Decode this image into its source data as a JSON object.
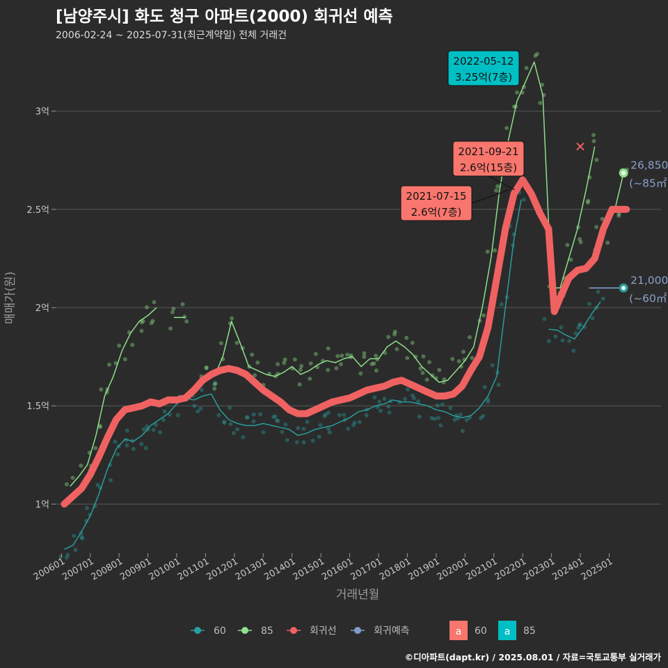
{
  "header": {
    "title": "[남양주시] 화도 청구 아파트(2000) 회귀선 예측",
    "subtitle": "2006-02-24 ~ 2025-07-31(최근계약일) 전체 거래건",
    "caption": "©디아파트(dapt.kr) / 2025.08.01 / 자료=국토교통부 실거래가"
  },
  "colors": {
    "background": "#2b2b2b",
    "grid": "#5a5a5a",
    "size60": "#2a9d9d",
    "size85": "#8ee08a",
    "regression": "#f06262",
    "forecast": "#7f9cc9",
    "label60": "#f8766d",
    "label85": "#00bfc4"
  },
  "chart_data": {
    "type": "line",
    "title": "[남양주시] 화도 청구 아파트(2000) 회귀선 예측",
    "xlabel": "거래년월",
    "ylabel": "매매가(원)",
    "x_ticks": [
      "200601",
      "200701",
      "200801",
      "200901",
      "201001",
      "201101",
      "201201",
      "201301",
      "201401",
      "201501",
      "201601",
      "201701",
      "201801",
      "201901",
      "202001",
      "202101",
      "202201",
      "202301",
      "202401",
      "202501"
    ],
    "y_ticks": [
      {
        "value": 10000,
        "label": "1억"
      },
      {
        "value": 15000,
        "label": "1.5억"
      },
      {
        "value": 20000,
        "label": "2억"
      },
      {
        "value": 25000,
        "label": "2.5억"
      },
      {
        "value": 30000,
        "label": "3억"
      }
    ],
    "ylim": [
      7500,
      33000
    ],
    "xlim": [
      2005.8,
      2026.8
    ],
    "grid": true,
    "series": [
      {
        "name": "60",
        "kind": "line",
        "color": "#2a9d9d",
        "x": [
          2006.1,
          2006.4,
          2006.7,
          2007.0,
          2007.3,
          2007.6,
          2007.9,
          2008.2,
          2008.5,
          2008.8,
          2009.1,
          2009.4,
          2009.7,
          2010.0,
          2010.3,
          2010.6,
          2010.9,
          2011.2,
          2011.5,
          2011.8,
          2012.1,
          2012.4,
          2012.7,
          2013.0,
          2013.3,
          2013.6,
          2013.9,
          2014.2,
          2014.5,
          2014.8,
          2015.1,
          2015.4,
          2015.7,
          2016.0,
          2016.3,
          2016.6,
          2016.9,
          2017.2,
          2017.5,
          2017.8,
          2018.1,
          2018.4,
          2018.7,
          2019.0,
          2019.3,
          2019.6,
          2019.9,
          2020.2,
          2020.5,
          2020.8,
          2021.1,
          2021.4,
          2021.7,
          2021.95
        ],
        "y": [
          7700,
          7900,
          8600,
          9400,
          10500,
          11800,
          12800,
          13300,
          13200,
          13500,
          14000,
          14300,
          14600,
          15100,
          15400,
          15300,
          15500,
          15600,
          14800,
          14300,
          14100,
          14000,
          14000,
          14100,
          14000,
          13900,
          13800,
          13500,
          13600,
          13800,
          13900,
          14000,
          14200,
          14400,
          14700,
          14800,
          15000,
          15100,
          15300,
          15200,
          15200,
          15100,
          15000,
          14800,
          14700,
          14500,
          14400,
          14500,
          14900,
          15500,
          16500,
          20000,
          23500,
          25500
        ]
      },
      {
        "name": "60",
        "kind": "line",
        "color": "#2a9d9d",
        "x": [
          2022.9,
          2023.2,
          2023.5,
          2023.8,
          2024.1,
          2024.4,
          2024.7
        ],
        "y": [
          18900,
          18850,
          18600,
          18400,
          19000,
          19700,
          20300
        ]
      },
      {
        "name": "85",
        "kind": "line",
        "color": "#8ee08a",
        "x": [
          2006.3,
          2006.6,
          2006.9,
          2007.2,
          2007.5,
          2007.8,
          2008.1,
          2008.4,
          2008.7,
          2009.0,
          2009.3
        ],
        "y": [
          10900,
          11400,
          12000,
          13500,
          15500,
          16500,
          17800,
          18700,
          19300,
          19600,
          20000
        ]
      },
      {
        "name": "85",
        "kind": "line",
        "color": "#8ee08a",
        "x": [
          2009.9,
          2010.3
        ],
        "y": [
          19500,
          19500
        ]
      },
      {
        "name": "85",
        "kind": "line",
        "color": "#8ee08a",
        "x": [
          2011.0,
          2011.3,
          2011.6,
          2011.9,
          2012.2,
          2012.5,
          2012.8,
          2013.1,
          2013.4,
          2013.7,
          2014.0,
          2014.3,
          2014.6,
          2014.9,
          2015.2,
          2015.5,
          2015.8,
          2016.1,
          2016.4,
          2016.7,
          2017.0,
          2017.3,
          2017.6,
          2017.9,
          2018.2,
          2018.5,
          2018.8,
          2019.1,
          2019.4,
          2019.7,
          2020.0,
          2020.3,
          2020.6,
          2020.9,
          2021.2,
          2021.5,
          2021.8,
          2022.1,
          2022.4,
          2022.7,
          2023.0,
          2023.3,
          2023.6,
          2023.9,
          2024.2,
          2024.5
        ],
        "y": [
          16500,
          16500,
          17500,
          19300,
          18200,
          17000,
          16800,
          16600,
          16500,
          16700,
          17000,
          16600,
          16800,
          17100,
          17300,
          17200,
          17400,
          17500,
          17000,
          17400,
          17400,
          18000,
          18300,
          18000,
          17600,
          17000,
          16600,
          16200,
          16300,
          16800,
          17300,
          18000,
          20000,
          22500,
          26000,
          28500,
          30500,
          31500,
          32500,
          30800,
          21000,
          21000,
          22500,
          24000,
          26000,
          28200
        ]
      },
      {
        "name": "85",
        "kind": "line",
        "color": "#8ee08a",
        "x": [
          2024.6,
          2024.9,
          2025.2,
          2025.5
        ],
        "y": [
          23500,
          24000,
          25000,
          26850
        ]
      },
      {
        "name": "회귀선",
        "kind": "regression",
        "color": "#f06262",
        "x": [
          2006.1,
          2006.4,
          2006.7,
          2007.0,
          2007.3,
          2007.6,
          2007.9,
          2008.2,
          2008.5,
          2008.8,
          2009.1,
          2009.4,
          2009.7,
          2010.0,
          2010.3,
          2010.6,
          2010.9,
          2011.2,
          2011.5,
          2011.8,
          2012.1,
          2012.4,
          2012.7,
          2013.0,
          2013.3,
          2013.6,
          2013.9,
          2014.2,
          2014.5,
          2014.8,
          2015.1,
          2015.4,
          2015.7,
          2016.0,
          2016.3,
          2016.6,
          2016.9,
          2017.2,
          2017.5,
          2017.8,
          2018.1,
          2018.4,
          2018.7,
          2019.0,
          2019.3,
          2019.6,
          2019.9,
          2020.2,
          2020.5,
          2020.8,
          2021.1,
          2021.4,
          2021.7,
          2022.0,
          2022.3,
          2022.6,
          2022.9,
          2023.1,
          2023.3,
          2023.6,
          2023.9,
          2024.2,
          2024.5,
          2024.8,
          2025.1,
          2025.4,
          2025.6
        ],
        "y": [
          10000,
          10400,
          10800,
          11500,
          12400,
          13400,
          14300,
          14800,
          14900,
          15000,
          15200,
          15100,
          15300,
          15300,
          15400,
          15800,
          16300,
          16600,
          16800,
          16900,
          16800,
          16600,
          16200,
          15800,
          15500,
          15200,
          14800,
          14600,
          14600,
          14800,
          15000,
          15200,
          15300,
          15400,
          15600,
          15800,
          15900,
          16000,
          16200,
          16300,
          16100,
          15900,
          15700,
          15500,
          15500,
          15600,
          16000,
          16800,
          17500,
          19000,
          21500,
          24000,
          25800,
          26500,
          25800,
          24800,
          24000,
          19800,
          20500,
          21500,
          21900,
          22000,
          22500,
          24000,
          25000,
          25000,
          25000
        ]
      },
      {
        "name": "회귀예측",
        "kind": "forecast",
        "color": "#7f9cc9",
        "x": [
          2024.3,
          2025.5
        ],
        "y": [
          21000,
          21000
        ]
      }
    ],
    "end_points": [
      {
        "x": 2025.5,
        "y": 26850,
        "color": "#8ee08a",
        "label_value": "26,850",
        "label_size": "(~85㎡)"
      },
      {
        "x": 2025.5,
        "y": 21000,
        "color": "#2a9d9d",
        "label_value": "21,000",
        "label_size": "(~60㎡)"
      }
    ],
    "annotations": [
      {
        "line1": "2022-05-12",
        "line2": "3.25억(7층)",
        "fill": "#00bfc4",
        "x": 2022.37,
        "y": 32500
      },
      {
        "line1": "2021-09-21",
        "line2": "2.6억(15층)",
        "fill": "#f8766d",
        "x": 2021.72,
        "y": 26000
      },
      {
        "line1": "2021-07-15",
        "line2": "2.6억(7층)",
        "fill": "#f8766d",
        "x": 2021.54,
        "y": 26000
      }
    ],
    "legend": {
      "position": "bottom",
      "items": [
        {
          "label": "60",
          "color": "#2a9d9d"
        },
        {
          "label": "85",
          "color": "#8ee08a"
        },
        {
          "label": "회귀선",
          "color": "#f06262"
        },
        {
          "label": "회귀예측",
          "color": "#7f9cc9"
        }
      ],
      "label_items": [
        {
          "symbol": "a",
          "label": "60",
          "fill": "#f8766d"
        },
        {
          "symbol": "a",
          "label": "85",
          "fill": "#00bfc4"
        }
      ]
    }
  }
}
